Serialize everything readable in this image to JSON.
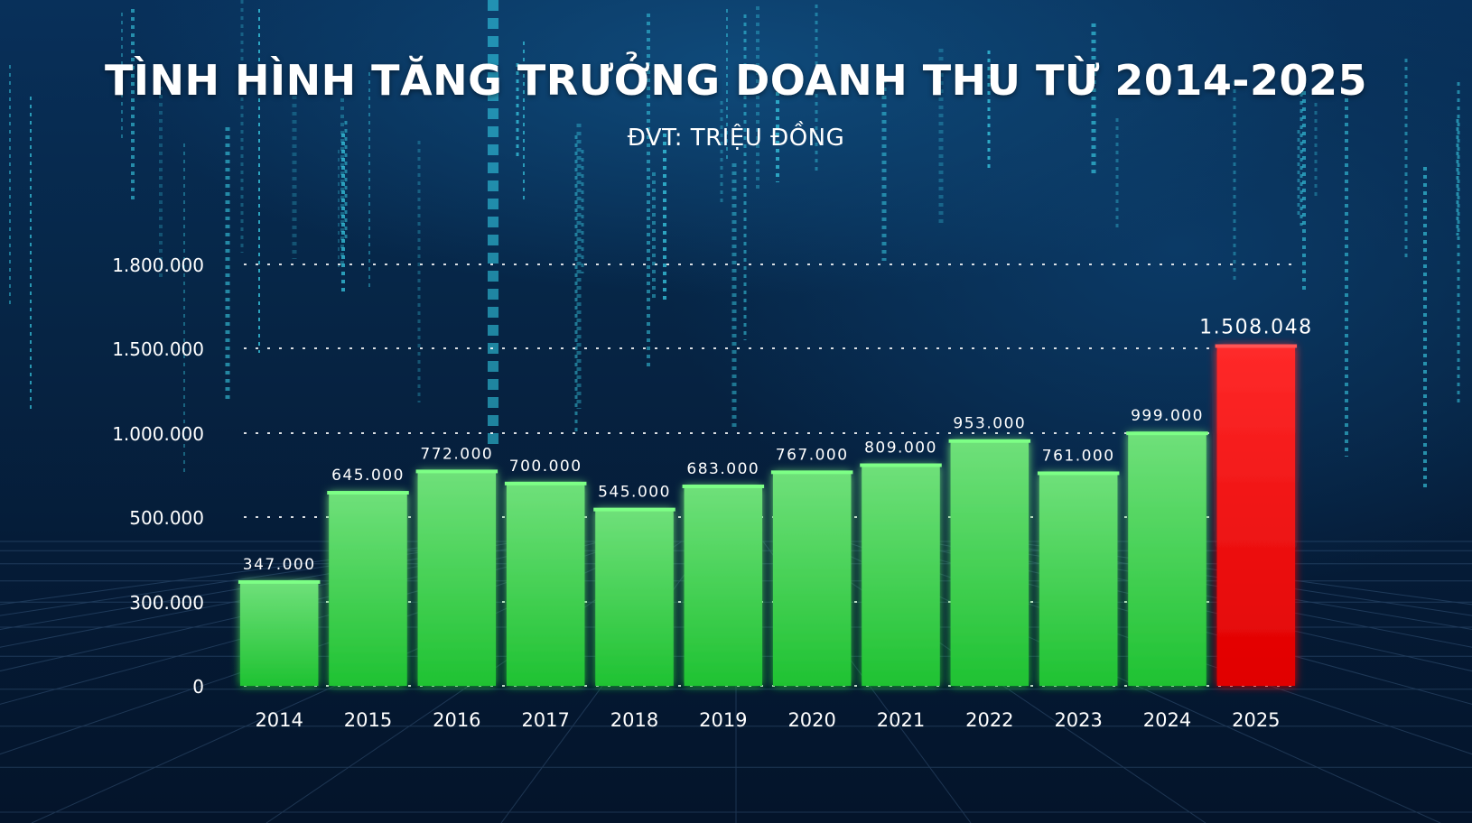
{
  "title": "TÌNH HÌNH TĂNG TRƯỞNG DOANH THU TỪ 2014-2025",
  "subtitle": "ĐVT: TRIỆU ĐỒNG",
  "colors": {
    "bar": "#3fd24a",
    "bar_highlight": "#ff1a1a",
    "background": "#062647",
    "grid": "#ffffff",
    "text": "#ffffff"
  },
  "chart_data": {
    "type": "bar",
    "categories": [
      "2014",
      "2015",
      "2016",
      "2017",
      "2018",
      "2019",
      "2020",
      "2021",
      "2022",
      "2023",
      "2024",
      "2025"
    ],
    "values": [
      347000,
      645000,
      772000,
      700000,
      545000,
      683000,
      767000,
      809000,
      953000,
      761000,
      999000,
      1508048
    ],
    "value_labels": [
      "347.000",
      "645.000",
      "772.000",
      "700.000",
      "545.000",
      "683.000",
      "767.000",
      "809.000",
      "953.000",
      "761.000",
      "999.000",
      "1.508.048"
    ],
    "highlight_category": "2025",
    "y_ticks": [
      0,
      300000,
      500000,
      1000000,
      1500000,
      1800000
    ],
    "y_tick_labels": [
      "0",
      "300.000",
      "500.000",
      "1.000.000",
      "1.500.000",
      "1.800.000"
    ],
    "grid": true,
    "grid_style": "dotted",
    "legend": "none"
  }
}
